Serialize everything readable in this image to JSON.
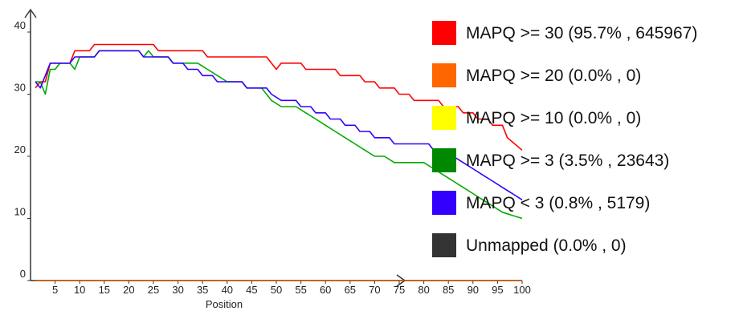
{
  "chart_data": {
    "type": "line",
    "title": "",
    "xlabel": "Position",
    "ylabel": "",
    "xlim": [
      0,
      100
    ],
    "ylim": [
      0,
      40
    ],
    "x_ticks": [
      5,
      10,
      15,
      20,
      25,
      30,
      35,
      40,
      45,
      50,
      55,
      60,
      65,
      70,
      75,
      80,
      85,
      90,
      95,
      100
    ],
    "y_ticks": [
      0,
      10,
      20,
      30,
      40
    ],
    "grid": false,
    "legend_position": "right",
    "legend": [
      {
        "label": "MAPQ >= 30 (95.7% , 645967)",
        "color": "#ff0000"
      },
      {
        "label": "MAPQ >= 20 (0.0% , 0)",
        "color": "#ff6600"
      },
      {
        "label": "MAPQ >= 10 (0.0% , 0)",
        "color": "#ffff00"
      },
      {
        "label": "MAPQ >= 3 (3.5% , 23643)",
        "color": "#008800"
      },
      {
        "label": "MAPQ < 3 (0.8% , 5179)",
        "color": "#3300ff"
      },
      {
        "label": "Unmapped (0.0% , 0)",
        "color": "#333333"
      }
    ],
    "series": [
      {
        "color": "#ff0000",
        "points": [
          [
            1,
            31
          ],
          [
            2,
            32
          ],
          [
            3,
            32
          ],
          [
            4,
            35
          ],
          [
            5,
            35
          ],
          [
            8,
            35
          ],
          [
            9,
            37
          ],
          [
            12,
            37
          ],
          [
            13,
            38
          ],
          [
            25,
            38
          ],
          [
            26,
            37
          ],
          [
            35,
            37
          ],
          [
            36,
            36
          ],
          [
            48,
            36
          ],
          [
            50,
            34
          ],
          [
            51,
            35
          ],
          [
            55,
            35
          ],
          [
            56,
            34
          ],
          [
            62,
            34
          ],
          [
            63,
            33
          ],
          [
            67,
            33
          ],
          [
            68,
            32
          ],
          [
            70,
            32
          ],
          [
            71,
            31
          ],
          [
            74,
            31
          ],
          [
            75,
            30
          ],
          [
            77,
            30
          ],
          [
            78,
            29
          ],
          [
            83,
            29
          ],
          [
            84,
            28
          ],
          [
            87,
            28
          ],
          [
            88,
            27
          ],
          [
            90,
            27
          ],
          [
            91,
            26
          ],
          [
            93,
            26
          ],
          [
            94,
            25
          ],
          [
            96,
            25
          ],
          [
            97,
            23
          ],
          [
            100,
            21
          ]
        ]
      },
      {
        "color": "#00aa00",
        "points": [
          [
            1,
            32
          ],
          [
            2,
            32
          ],
          [
            3,
            30
          ],
          [
            4,
            34
          ],
          [
            5,
            34
          ],
          [
            6,
            35
          ],
          [
            8,
            35
          ],
          [
            9,
            34
          ],
          [
            10,
            36
          ],
          [
            13,
            36
          ],
          [
            14,
            37
          ],
          [
            22,
            37
          ],
          [
            23,
            36
          ],
          [
            24,
            37
          ],
          [
            25,
            36
          ],
          [
            28,
            36
          ],
          [
            29,
            35
          ],
          [
            34,
            35
          ],
          [
            36,
            34
          ],
          [
            38,
            33
          ],
          [
            40,
            32
          ],
          [
            43,
            32
          ],
          [
            44,
            31
          ],
          [
            47,
            31
          ],
          [
            48,
            30
          ],
          [
            49,
            29
          ],
          [
            51,
            28
          ],
          [
            54,
            28
          ],
          [
            56,
            27
          ],
          [
            58,
            26
          ],
          [
            60,
            25
          ],
          [
            62,
            24
          ],
          [
            64,
            23
          ],
          [
            66,
            22
          ],
          [
            68,
            21
          ],
          [
            70,
            20
          ],
          [
            72,
            20
          ],
          [
            74,
            19
          ],
          [
            80,
            19
          ],
          [
            82,
            18
          ],
          [
            84,
            17
          ],
          [
            86,
            16
          ],
          [
            88,
            15
          ],
          [
            90,
            14
          ],
          [
            92,
            13
          ],
          [
            94,
            12
          ],
          [
            96,
            11
          ],
          [
            100,
            10
          ]
        ]
      },
      {
        "color": "#3300ff",
        "points": [
          [
            1,
            32
          ],
          [
            2,
            31
          ],
          [
            3,
            33
          ],
          [
            4,
            35
          ],
          [
            5,
            35
          ],
          [
            8,
            35
          ],
          [
            9,
            36
          ],
          [
            13,
            36
          ],
          [
            14,
            37
          ],
          [
            22,
            37
          ],
          [
            23,
            36
          ],
          [
            28,
            36
          ],
          [
            29,
            35
          ],
          [
            31,
            35
          ],
          [
            32,
            34
          ],
          [
            34,
            34
          ],
          [
            35,
            33
          ],
          [
            37,
            33
          ],
          [
            38,
            32
          ],
          [
            43,
            32
          ],
          [
            44,
            31
          ],
          [
            48,
            31
          ],
          [
            49,
            30
          ],
          [
            51,
            29
          ],
          [
            54,
            29
          ],
          [
            55,
            28
          ],
          [
            57,
            28
          ],
          [
            58,
            27
          ],
          [
            60,
            27
          ],
          [
            61,
            26
          ],
          [
            63,
            26
          ],
          [
            64,
            25
          ],
          [
            66,
            25
          ],
          [
            67,
            24
          ],
          [
            69,
            24
          ],
          [
            70,
            23
          ],
          [
            73,
            23
          ],
          [
            74,
            22
          ],
          [
            81,
            22
          ],
          [
            82,
            21
          ],
          [
            85,
            21
          ],
          [
            86,
            20
          ],
          [
            88,
            19
          ],
          [
            90,
            18
          ],
          [
            92,
            17
          ],
          [
            94,
            16
          ],
          [
            96,
            15
          ],
          [
            98,
            14
          ],
          [
            100,
            13
          ]
        ]
      },
      {
        "color": "#cc5500",
        "points": [
          [
            1,
            0
          ],
          [
            100,
            0
          ]
        ]
      }
    ]
  }
}
